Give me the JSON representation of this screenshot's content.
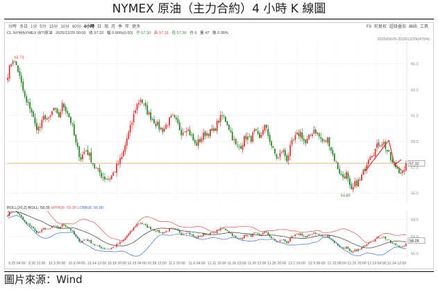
{
  "page": {
    "title": "NYMEX 原油（主力合約）4 小時 K 線圖",
    "caption": "圖片來源：Wind"
  },
  "toolbar": {
    "tabs": [
      "分時",
      "多日",
      "1分",
      "5分",
      "15分",
      "30分",
      "60分",
      "4小時",
      "日",
      "周",
      "月",
      "季",
      "年",
      "更多"
    ],
    "active_tab": "4小時",
    "tools": [
      "F9",
      "前复权",
      "超级叠加",
      "画线",
      "工具"
    ]
  },
  "info": {
    "symbol": "CL.NYM|NYMEX WTI原油",
    "datetime": "2025/12/29 00:00",
    "close_label": "收 57.32",
    "change_label": "幅 0.00%(0.00)",
    "open_label": "开 57.30",
    "high_label": "高 57.31",
    "low_label": "低 57.30",
    "hold_label": "仓 0",
    "volume_label": "量 47",
    "amplitude_label": "振 0.05%"
  },
  "range_label": "2025/09/25-2025/12/29(470/4)",
  "boll": {
    "label": "BOLL(20,2)",
    "boll_value": "BOLL: 58.05",
    "upper": "UPPER: 59.30",
    "lower": "LOWER: 56.80",
    "mid_color": "#333333",
    "upper_color": "#e05050",
    "lower_color": "#3a6fd8"
  },
  "colors": {
    "up": "#e23b3b",
    "down": "#2e8b2e",
    "ref_line": "#f0b070"
  },
  "chart_data": {
    "type": "candlestick",
    "x_tick_labels": [
      "9.25 04:00",
      "9.30 12:00",
      "10.3 20:00",
      "10.9 04:00",
      "10.14 12:00",
      "10.19 20:00",
      "10.23 04:00",
      "10.28 12:00",
      "11.2 20:00",
      "11.6 04:00",
      "11.11 16:00",
      "11.16 23:00",
      "11.20 12:00",
      "11.25 20:00",
      "12.1 16:00",
      "12.5 00:00",
      "12.10 08:00",
      "12.15 20:00",
      "12.19 04:00",
      "12.24 12:00"
    ],
    "y_ticks": [
      55.0,
      57.0,
      59.0,
      61.0,
      63.0,
      65.0
    ],
    "y_range": [
      54.6,
      66.4
    ],
    "close_path": [
      64.2,
      65.4,
      64.8,
      63.4,
      62.0,
      61.6,
      60.2,
      60.0,
      61.0,
      60.6,
      61.6,
      60.8,
      61.9,
      61.3,
      60.3,
      58.6,
      57.7,
      58.4,
      57.8,
      57.0,
      56.6,
      56.2,
      56.1,
      56.5,
      57.2,
      57.8,
      59.2,
      60.3,
      61.7,
      62.3,
      61.6,
      61.0,
      60.6,
      60.1,
      59.9,
      60.5,
      60.9,
      60.4,
      59.7,
      60.1,
      59.5,
      58.7,
      59.1,
      59.6,
      59.7,
      59.8,
      60.6,
      61.0,
      60.4,
      59.4,
      58.5,
      58.7,
      59.4,
      59.1,
      59.8,
      59.1,
      60.3,
      59.4,
      58.3,
      57.6,
      58.4,
      57.6,
      58.8,
      59.4,
      59.7,
      58.8,
      59.4,
      60.0,
      59.4,
      58.9,
      59.2,
      58.0,
      57.1,
      56.2,
      56.5,
      55.0,
      55.8,
      56.0,
      56.9,
      58.0,
      58.2,
      58.8,
      59.0,
      58.2,
      57.3,
      57.0,
      56.6,
      56.5
    ],
    "last_value": 57.32,
    "high_label": "65.73",
    "low_label": "54.88",
    "boll_y_ticks": [
      63.0,
      59.0,
      55.0
    ],
    "boll_y_range": [
      54.6,
      64.4
    ],
    "boll_last": 58.05
  }
}
